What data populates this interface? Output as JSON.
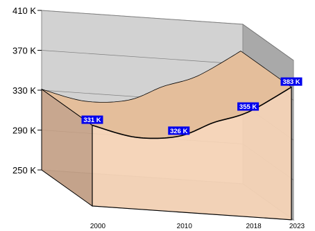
{
  "chart_data": {
    "type": "area",
    "title": "",
    "xlabel": "",
    "ylabel": "",
    "ylim": [
      250,
      410
    ],
    "y_ticks": [
      250,
      290,
      330,
      370,
      410
    ],
    "y_tick_labels": [
      "250 K",
      "290 K",
      "330 K",
      "370 K",
      "410 K"
    ],
    "x_ticks": [
      2000,
      2010,
      2018,
      2023
    ],
    "x_tick_labels": [
      "2000",
      "2010",
      "2018",
      "2023"
    ],
    "grid": true,
    "three_d": true,
    "series": [
      {
        "x": [
          2000,
          2005,
          2010,
          2014,
          2018,
          2023
        ],
        "values": [
          331,
          322,
          326,
          342,
          355,
          383
        ]
      }
    ],
    "data_labels": [
      {
        "x": 2000,
        "text": "331 K"
      },
      {
        "x": 2010,
        "text": "326 K"
      },
      {
        "x": 2018,
        "text": "355 K"
      },
      {
        "x": 2023,
        "text": "383 K"
      }
    ],
    "colors": {
      "area_front": "#f7d5b7",
      "area_top": "#e4be9b",
      "area_side": "#c7a084",
      "back_wall": "#d2d2d2",
      "side_wall": "#a9a9a9",
      "floor": "#b3b3b3",
      "label_bg": "#0000ee",
      "label_text": "#ffffff",
      "outline": "#000000"
    }
  }
}
